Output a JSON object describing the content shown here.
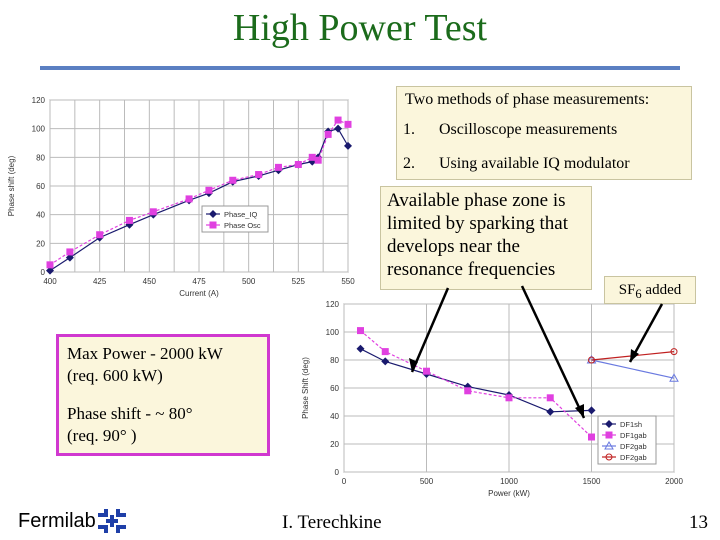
{
  "slide": {
    "title": "High Power Test",
    "methods": {
      "heading": "Two methods of phase measurements:",
      "items": [
        {
          "num": "1.",
          "text": "Oscilloscope measurements"
        },
        {
          "num": "2.",
          "text": "Using available IQ modulator"
        }
      ]
    },
    "note": "Available phase zone is limited by sparking that develops near the resonance frequencies",
    "sf6": {
      "base": "SF",
      "sub": "6",
      "rest": " added"
    },
    "max_power": {
      "line1": "Max Power - 2000 kW",
      "line2": "(req. 600 kW)",
      "line3": "Phase shift - ~ 80°",
      "line4": "(req. 90° )"
    },
    "footer": {
      "logo": "Fermilab",
      "author": "I. Terechkine",
      "page": "13"
    }
  },
  "colors": {
    "title": "#1b6b1b",
    "rule": "#5b7fc2",
    "callout_bg": "#fbf6dc",
    "box_border": "#d038d0",
    "series_navy": "#1a1a6e",
    "series_magenta": "#e040e0",
    "series_red": "#c02020",
    "series_blue": "#6a7ae0"
  },
  "chart_data": [
    {
      "type": "line",
      "xlabel": "Current (A)",
      "ylabel": "Phase shift (deg)",
      "xlim": [
        400,
        550
      ],
      "ylim": [
        0,
        120
      ],
      "x_ticks": [
        "400",
        "425",
        "450",
        "475",
        "500",
        "525",
        "550"
      ],
      "y_ticks": [
        "0",
        "20",
        "40",
        "60",
        "80",
        "100",
        "120"
      ],
      "grid": true,
      "legend": "center-right",
      "series": [
        {
          "name": "Phase_IQ",
          "color": "#1a1a6e",
          "x": [
            400,
            410,
            425,
            440,
            452,
            470,
            480,
            492,
            505,
            515,
            525,
            532,
            535,
            540,
            545,
            550
          ],
          "y": [
            1,
            10,
            24,
            33,
            40,
            50,
            55,
            63,
            67,
            71,
            75,
            77,
            80,
            98,
            100,
            88
          ]
        },
        {
          "name": "Phase Osc",
          "color": "#e040e0",
          "x": [
            400,
            410,
            425,
            440,
            452,
            470,
            480,
            492,
            505,
            515,
            525,
            532,
            535,
            540,
            545,
            550
          ],
          "y": [
            5,
            14,
            26,
            36,
            42,
            51,
            57,
            64,
            68,
            73,
            75,
            80,
            78,
            96,
            106,
            103
          ]
        }
      ]
    },
    {
      "type": "line",
      "xlabel": "Power (kW)",
      "ylabel": "Phase Shift (deg)",
      "xlim": [
        0,
        2000
      ],
      "ylim": [
        0,
        120
      ],
      "x_ticks": [
        "0",
        "500",
        "1000",
        "1500",
        "2000"
      ],
      "y_ticks": [
        "0",
        "20",
        "40",
        "60",
        "80",
        "100",
        "120"
      ],
      "grid": true,
      "legend": "bottom-right",
      "series": [
        {
          "name": "DF1sh",
          "color": "#1a1a6e",
          "x": [
            100,
            250,
            500,
            750,
            1000,
            1250,
            1500
          ],
          "y": [
            88,
            79,
            70,
            61,
            55,
            43,
            44
          ]
        },
        {
          "name": "DF1gab",
          "color": "#e040e0",
          "x": [
            100,
            250,
            500,
            750,
            1000,
            1250,
            1500
          ],
          "y": [
            101,
            86,
            72,
            58,
            53,
            53,
            25
          ]
        },
        {
          "name": "DF2gab",
          "color": "#6a7ae0",
          "x": [
            1500,
            2000
          ],
          "y": [
            80,
            67
          ]
        },
        {
          "name": "DF2gab",
          "color": "#c02020",
          "x": [
            1500,
            2000
          ],
          "y": [
            80,
            86
          ]
        }
      ]
    }
  ]
}
